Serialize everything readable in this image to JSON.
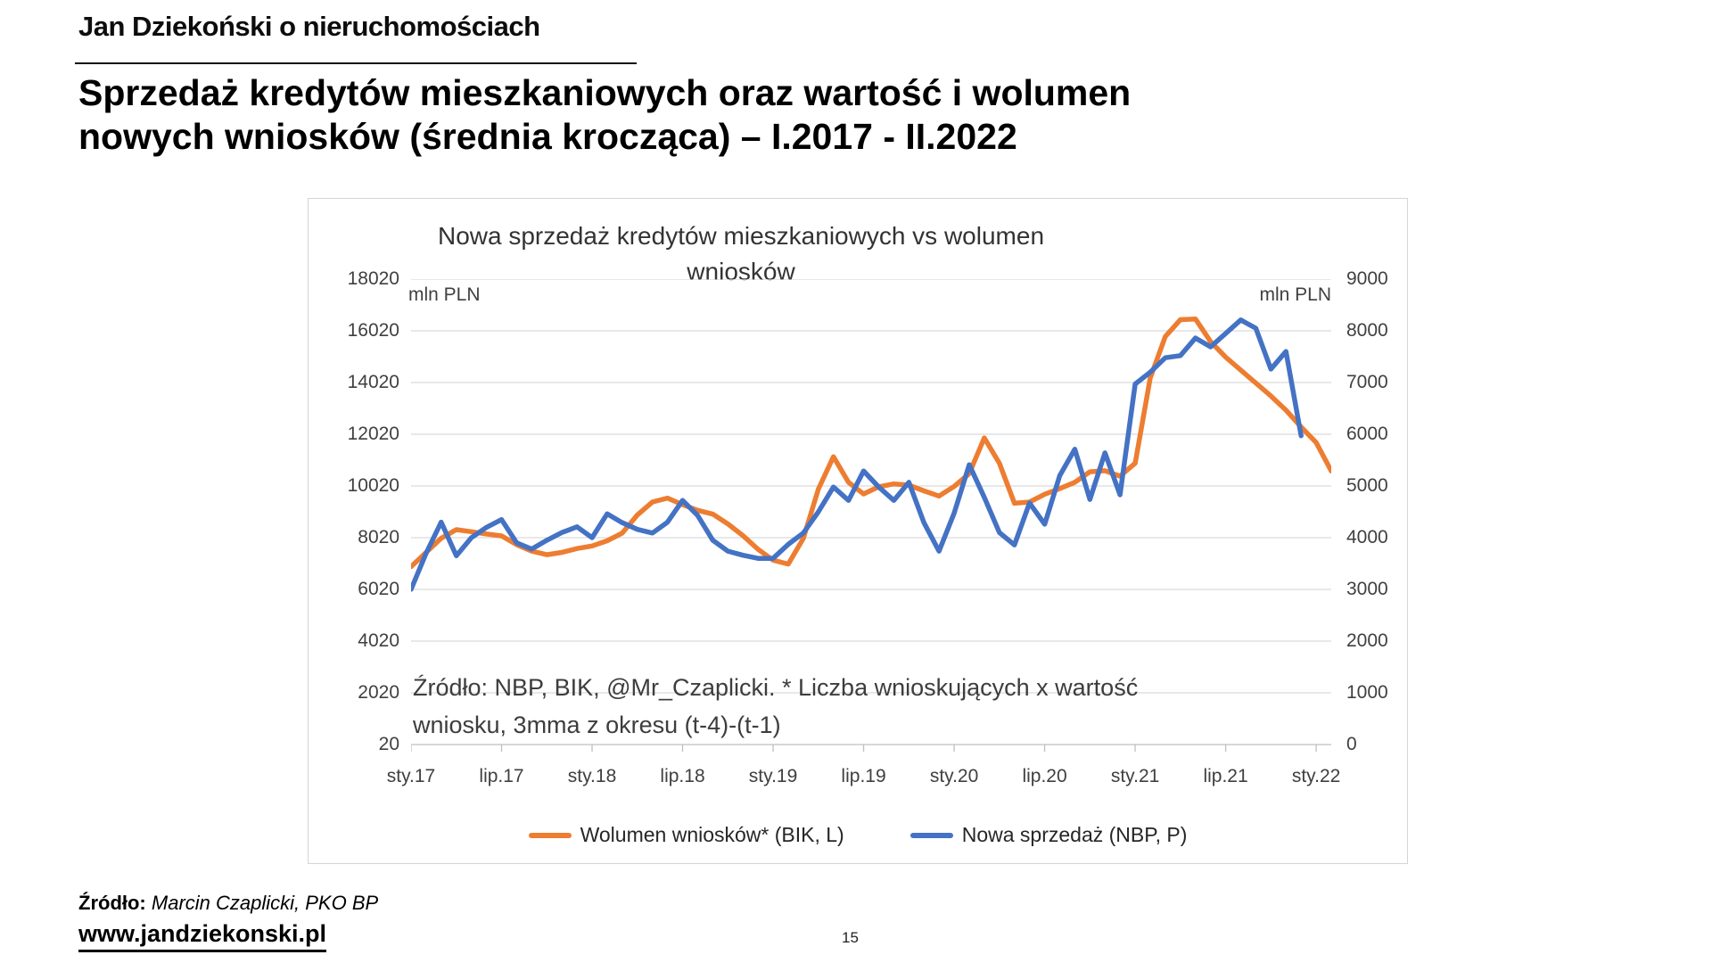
{
  "slide": {
    "brand": "Jan Dziekoński o nieruchomościach",
    "title_line1": "Sprzedaż kredytów mieszkaniowych oraz wartość i wolumen",
    "title_line2": "nowych wniosków (średnia krocząca) – I.2017 - II.2022",
    "source_label": "Źródło:",
    "source_text": "Marcin Czaplicki, PKO BP",
    "website": "www.jandziekonski.pl",
    "page_number": "15"
  },
  "chart_data": {
    "type": "line",
    "title_line1": "Nowa sprzedaż kredytów mieszkaniowych vs wolumen",
    "title_line2": "wniosków",
    "left_axis": {
      "unit": "mln PLN",
      "min": 20,
      "max": 18020,
      "step": 2000,
      "ticks": [
        "18020",
        "16020",
        "14020",
        "12020",
        "10020",
        "8020",
        "6020",
        "4020",
        "2020",
        "20"
      ]
    },
    "right_axis": {
      "unit": "mln PLN",
      "min": 0,
      "max": 9000,
      "step": 1000,
      "ticks": [
        "9000",
        "8000",
        "7000",
        "6000",
        "5000",
        "4000",
        "3000",
        "2000",
        "1000",
        "0"
      ]
    },
    "x_tick_labels": [
      "sty.17",
      "lip.17",
      "sty.18",
      "lip.18",
      "sty.19",
      "lip.19",
      "sty.20",
      "lip.20",
      "sty.21",
      "lip.21",
      "sty.22"
    ],
    "categories": [
      "sty.17",
      "lut.17",
      "mar.17",
      "kwi.17",
      "maj.17",
      "cze.17",
      "lip.17",
      "sie.17",
      "wrz.17",
      "paź.17",
      "lis.17",
      "gru.17",
      "sty.18",
      "lut.18",
      "mar.18",
      "kwi.18",
      "maj.18",
      "cze.18",
      "lip.18",
      "sie.18",
      "wrz.18",
      "paź.18",
      "lis.18",
      "gru.18",
      "sty.19",
      "lut.19",
      "mar.19",
      "kwi.19",
      "maj.19",
      "cze.19",
      "lip.19",
      "sie.19",
      "wrz.19",
      "paź.19",
      "lis.19",
      "gru.19",
      "sty.20",
      "lut.20",
      "mar.20",
      "kwi.20",
      "maj.20",
      "cze.20",
      "lip.20",
      "sie.20",
      "wrz.20",
      "paź.20",
      "lis.20",
      "gru.20",
      "sty.21",
      "lut.21",
      "mar.21",
      "kwi.21",
      "maj.21",
      "cze.21",
      "lip.21",
      "sie.21",
      "wrz.21",
      "paź.21",
      "lis.21",
      "gru.21",
      "sty.22",
      "lut.22"
    ],
    "annotation_line1": "Źródło: NBP, BIK, @Mr_Czaplicki. * Liczba wnioskujących x wartość",
    "annotation_line2": "wniosku, 3mma z okresu (t-4)-(t-1)",
    "grid": true,
    "legend_position": "bottom",
    "series": [
      {
        "name": "Wolumen wniosków* (BIK, L)",
        "axis": "left",
        "color": "#ED7D31",
        "values": [
          6900,
          7450,
          8000,
          8330,
          8250,
          8160,
          8090,
          7750,
          7500,
          7360,
          7450,
          7600,
          7700,
          7900,
          8200,
          8900,
          9400,
          9550,
          9300,
          9080,
          8930,
          8550,
          8100,
          7570,
          7150,
          7000,
          7990,
          9900,
          11150,
          10160,
          9710,
          9990,
          10100,
          10050,
          9830,
          9630,
          10000,
          10500,
          11880,
          10900,
          9350,
          9400,
          9700,
          9920,
          10160,
          10570,
          10610,
          10400,
          10900,
          14200,
          15800,
          16450,
          16480,
          15600,
          15000,
          14500,
          14000,
          13500,
          12950,
          12300,
          11700,
          10600
        ]
      },
      {
        "name": "Nowa sprzedaż (NBP, P)",
        "axis": "right",
        "color": "#4472C4",
        "values": [
          3000,
          3700,
          4300,
          3650,
          4000,
          4200,
          4350,
          3900,
          3780,
          3950,
          4100,
          4210,
          4000,
          4460,
          4290,
          4160,
          4090,
          4300,
          4720,
          4430,
          3950,
          3740,
          3660,
          3600,
          3600,
          3870,
          4090,
          4500,
          4980,
          4720,
          5290,
          4980,
          4720,
          5070,
          4290,
          3740,
          4470,
          5410,
          4780,
          4100,
          3860,
          4670,
          4260,
          5200,
          5710,
          4740,
          5640,
          4830,
          6970,
          7200,
          7480,
          7520,
          7860,
          7690,
          7950,
          8210,
          8050,
          7260,
          7600,
          5970
        ]
      }
    ]
  }
}
